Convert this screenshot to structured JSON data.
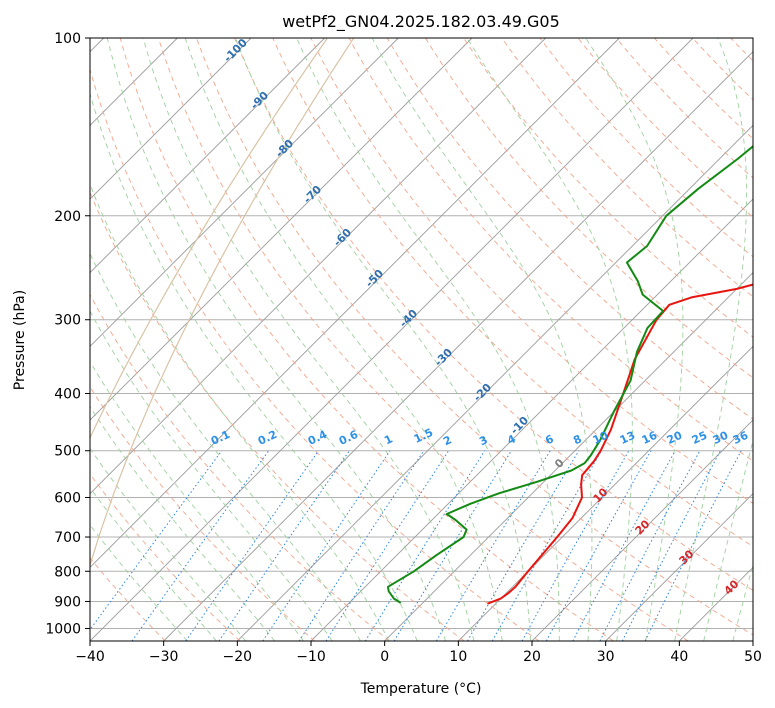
{
  "chart_data": {
    "type": "line",
    "title": "wetPf2_GN04.2025.182.03.49.G05",
    "xlabel": "Temperature (°C)",
    "ylabel": "Pressure (hPa)",
    "xlim": [
      -40,
      50
    ],
    "ylim": [
      1050,
      100
    ],
    "y_scale": "log",
    "grid": true,
    "x_ticks": [
      -40,
      -30,
      -20,
      -10,
      0,
      10,
      20,
      30,
      40,
      50
    ],
    "y_ticks": [
      100,
      200,
      300,
      400,
      500,
      600,
      700,
      800,
      900,
      1000
    ],
    "series": [
      {
        "name": "",
        "color": "#e8150f",
        "points": [
          {
            "p": 908,
            "t": 8.9
          },
          {
            "p": 890,
            "t": 10.0
          },
          {
            "p": 870,
            "t": 10.3
          },
          {
            "p": 850,
            "t": 10.4
          },
          {
            "p": 800,
            "t": 10.0
          },
          {
            "p": 700,
            "t": 9.3
          },
          {
            "p": 650,
            "t": 8.8
          },
          {
            "p": 600,
            "t": 7.3
          },
          {
            "p": 570,
            "t": 5.4
          },
          {
            "p": 550,
            "t": 4.3
          },
          {
            "p": 520,
            "t": 4.0
          },
          {
            "p": 500,
            "t": 3.5
          },
          {
            "p": 460,
            "t": 2.0
          },
          {
            "p": 400,
            "t": -1.2
          },
          {
            "p": 350,
            "t": -4.3
          },
          {
            "p": 300,
            "t": -6.7
          },
          {
            "p": 283,
            "t": -7.0
          },
          {
            "p": 275,
            "t": -5.0
          },
          {
            "p": 266,
            "t": 0.0
          },
          {
            "p": 255,
            "t": 4.0
          },
          {
            "p": 240,
            "t": 7.0
          },
          {
            "p": 220,
            "t": 10.0
          },
          {
            "p": 200,
            "t": 13.0
          },
          {
            "p": 180,
            "t": 16.0
          },
          {
            "p": 160,
            "t": 19.5
          },
          {
            "p": 140,
            "t": 23.5
          },
          {
            "p": 128,
            "t": 26.7
          },
          {
            "p": 115,
            "t": 29.0
          },
          {
            "p": 100,
            "t": 33.0
          }
        ]
      },
      {
        "name": "",
        "color": "#138a13",
        "points": [
          {
            "p": 905,
            "t": -3.0
          },
          {
            "p": 890,
            "t": -4.5
          },
          {
            "p": 865,
            "t": -6.2
          },
          {
            "p": 850,
            "t": -6.9
          },
          {
            "p": 800,
            "t": -5.5
          },
          {
            "p": 750,
            "t": -4.6
          },
          {
            "p": 700,
            "t": -3.4
          },
          {
            "p": 680,
            "t": -4.0
          },
          {
            "p": 655,
            "t": -6.8
          },
          {
            "p": 640,
            "t": -8.8
          },
          {
            "p": 615,
            "t": -7.0
          },
          {
            "p": 590,
            "t": -4.5
          },
          {
            "p": 565,
            "t": -1.0
          },
          {
            "p": 540,
            "t": 2.2
          },
          {
            "p": 525,
            "t": 3.0
          },
          {
            "p": 510,
            "t": 2.8
          },
          {
            "p": 480,
            "t": 2.0
          },
          {
            "p": 430,
            "t": 0.0
          },
          {
            "p": 380,
            "t": -2.0
          },
          {
            "p": 340,
            "t": -5.0
          },
          {
            "p": 310,
            "t": -6.8
          },
          {
            "p": 290,
            "t": -7.0
          },
          {
            "p": 272,
            "t": -12.0
          },
          {
            "p": 258,
            "t": -14.5
          },
          {
            "p": 240,
            "t": -18.5
          },
          {
            "p": 225,
            "t": -18.0
          },
          {
            "p": 200,
            "t": -19.5
          },
          {
            "p": 180,
            "t": -18.8
          },
          {
            "p": 160,
            "t": -17.5
          },
          {
            "p": 140,
            "t": -16.5
          },
          {
            "p": 125,
            "t": -15.0
          },
          {
            "p": 110,
            "t": -13.0
          },
          {
            "p": 100,
            "t": -11.5
          }
        ]
      }
    ],
    "dry_adiabat_labels": [
      "-100",
      "-90",
      "-80",
      "-70",
      "-60",
      "-50",
      "-40",
      "-30",
      "-20",
      "-10"
    ],
    "moist_adiabat_labels": [
      "0",
      "10",
      "20",
      "30",
      "40"
    ],
    "mixing_ratio_labels": [
      "0.1",
      "0.2",
      "0.4",
      "0.6",
      "1",
      "1.5",
      "2",
      "3",
      "4",
      "6",
      "8",
      "10",
      "13",
      "16",
      "20",
      "25",
      "30",
      "36"
    ],
    "colors": {
      "isotherm": "#9a9a9a",
      "dry_adiabat": "#f4a58b",
      "moist_adiabat": "#9fd09f",
      "mixing_ratio": "#2f86e0",
      "dry_label": "#2f6fb0",
      "moist_label_positive": "#d62728",
      "moist_label_zero": "#7f7f7f",
      "mixing_label": "#2e91e8",
      "tan_curve": "#d9c3a5"
    }
  }
}
